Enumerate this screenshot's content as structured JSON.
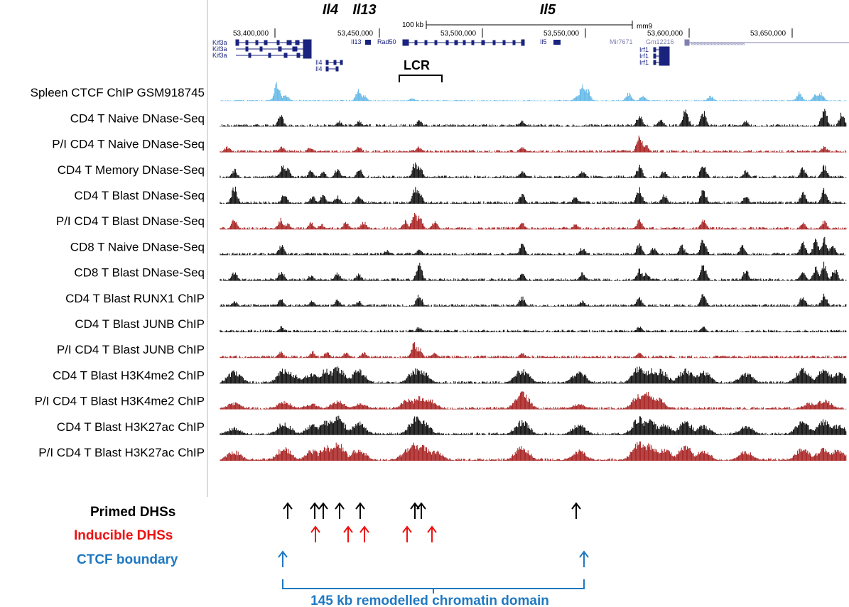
{
  "browser": {
    "gene_headers": [
      {
        "label": "Il4",
        "x": 465
      },
      {
        "label": "Il13",
        "x": 513
      },
      {
        "label": "Il5",
        "x": 771
      }
    ],
    "scale": {
      "label": "100 kb",
      "assembly": "mm9"
    },
    "coordinates": [
      "53,400,000",
      "53,450,000",
      "53,500,000",
      "53,550,000",
      "53,600,000",
      "53,650,000"
    ],
    "genes": {
      "kif3a": [
        "Kif3a",
        "Kif3a",
        "Kif3a"
      ],
      "il4": [
        "Il4",
        "Il4"
      ],
      "il13": "Il13",
      "rad50": "Rad50",
      "il5": "Il5",
      "mir7671": "Mir7671",
      "gm12216": "Gm12216",
      "irf1": [
        "Irf1",
        "Irf1",
        "Irf1"
      ]
    },
    "lcr_label": "LCR"
  },
  "colors": {
    "ctcf": "#5ab4e6",
    "resting": "#000000",
    "stimulated": "#a31515",
    "inducible": "#ee1111",
    "boundary": "#1f78c1"
  },
  "tracks": [
    {
      "label": "Spleen CTCF ChIP GSM918745",
      "kind": "ctcf",
      "peaks": [
        [
          390,
          0.95
        ],
        [
          402,
          0.35
        ],
        [
          505,
          0.6
        ],
        [
          512,
          0.3
        ],
        [
          580,
          0.15
        ],
        [
          820,
          0.95
        ],
        [
          826,
          0.7
        ],
        [
          812,
          0.3
        ],
        [
          885,
          0.4
        ],
        [
          905,
          0.3
        ],
        [
          1000,
          0.25
        ],
        [
          1125,
          0.45
        ],
        [
          1148,
          0.35
        ],
        [
          1155,
          0.45
        ]
      ]
    },
    {
      "label": "CD4 T  Naive DNase-Seq",
      "kind": "resting",
      "peaks": [
        [
          395,
          0.6
        ],
        [
          477,
          0.3
        ],
        [
          505,
          0.3
        ],
        [
          590,
          0.35
        ],
        [
          735,
          0.3
        ],
        [
          900,
          0.65
        ],
        [
          930,
          0.4
        ],
        [
          965,
          0.9
        ],
        [
          990,
          0.8
        ],
        [
          1050,
          0.3
        ],
        [
          1160,
          0.95
        ],
        [
          1185,
          0.7
        ]
      ]
    },
    {
      "label": "P/I CD4 T  Naive DNase-Seq",
      "kind": "stimulated",
      "peaks": [
        [
          320,
          0.3
        ],
        [
          397,
          0.3
        ],
        [
          437,
          0.3
        ],
        [
          505,
          0.3
        ],
        [
          590,
          0.3
        ],
        [
          735,
          0.3
        ],
        [
          900,
          0.9
        ],
        [
          910,
          0.35
        ],
        [
          1160,
          0.3
        ]
      ]
    },
    {
      "label": "CD4 T  Memory DNase-Seq",
      "kind": "resting",
      "peaks": [
        [
          330,
          0.45
        ],
        [
          398,
          0.65
        ],
        [
          405,
          0.5
        ],
        [
          438,
          0.4
        ],
        [
          455,
          0.3
        ],
        [
          475,
          0.5
        ],
        [
          506,
          0.45
        ],
        [
          585,
          0.85
        ],
        [
          590,
          0.7
        ],
        [
          735,
          0.4
        ],
        [
          820,
          0.4
        ],
        [
          900,
          0.65
        ],
        [
          935,
          0.4
        ],
        [
          990,
          0.8
        ],
        [
          1050,
          0.4
        ],
        [
          1130,
          0.55
        ],
        [
          1160,
          0.65
        ]
      ]
    },
    {
      "label": "CD4 T  Blast DNase-Seq",
      "kind": "resting",
      "peaks": [
        [
          330,
          0.95
        ],
        [
          400,
          0.55
        ],
        [
          440,
          0.4
        ],
        [
          455,
          0.5
        ],
        [
          475,
          0.4
        ],
        [
          506,
          0.45
        ],
        [
          585,
          0.85
        ],
        [
          590,
          0.7
        ],
        [
          735,
          0.5
        ],
        [
          810,
          0.35
        ],
        [
          900,
          0.85
        ],
        [
          935,
          0.5
        ],
        [
          990,
          0.75
        ],
        [
          1050,
          0.4
        ],
        [
          1130,
          0.6
        ],
        [
          1160,
          0.75
        ]
      ]
    },
    {
      "label": "P/I CD4 T  Blast DNase-Seq",
      "kind": "stimulated",
      "peaks": [
        [
          330,
          0.55
        ],
        [
          395,
          0.55
        ],
        [
          405,
          0.3
        ],
        [
          438,
          0.35
        ],
        [
          452,
          0.3
        ],
        [
          487,
          0.45
        ],
        [
          512,
          0.4
        ],
        [
          570,
          0.45
        ],
        [
          583,
          0.9
        ],
        [
          590,
          0.8
        ],
        [
          612,
          0.45
        ],
        [
          735,
          0.35
        ],
        [
          810,
          0.3
        ],
        [
          900,
          0.55
        ],
        [
          990,
          0.5
        ],
        [
          1130,
          0.4
        ],
        [
          1160,
          0.45
        ]
      ]
    },
    {
      "label": "CD8 T  Naive DNase-Seq",
      "kind": "resting",
      "peaks": [
        [
          396,
          0.55
        ],
        [
          545,
          0.25
        ],
        [
          590,
          0.3
        ],
        [
          735,
          0.55
        ],
        [
          820,
          0.4
        ],
        [
          900,
          0.6
        ],
        [
          920,
          0.4
        ],
        [
          960,
          0.5
        ],
        [
          990,
          0.9
        ],
        [
          1045,
          0.5
        ],
        [
          1130,
          0.65
        ],
        [
          1148,
          0.8
        ],
        [
          1160,
          0.9
        ],
        [
          1172,
          0.65
        ]
      ]
    },
    {
      "label": "CD8 T  Blast DNase-Seq",
      "kind": "resting",
      "peaks": [
        [
          330,
          0.45
        ],
        [
          396,
          0.55
        ],
        [
          438,
          0.3
        ],
        [
          475,
          0.45
        ],
        [
          505,
          0.35
        ],
        [
          590,
          0.9
        ],
        [
          735,
          0.4
        ],
        [
          820,
          0.45
        ],
        [
          900,
          0.6
        ],
        [
          910,
          0.45
        ],
        [
          990,
          0.85
        ],
        [
          1050,
          0.6
        ],
        [
          1130,
          0.55
        ],
        [
          1148,
          0.7
        ],
        [
          1160,
          0.9
        ],
        [
          1175,
          0.65
        ]
      ]
    },
    {
      "label": "CD4 T  Blast RUNX1 ChIP",
      "kind": "resting",
      "peaks": [
        [
          330,
          0.3
        ],
        [
          396,
          0.4
        ],
        [
          440,
          0.3
        ],
        [
          475,
          0.35
        ],
        [
          505,
          0.3
        ],
        [
          590,
          0.65
        ],
        [
          735,
          0.5
        ],
        [
          820,
          0.3
        ],
        [
          900,
          0.55
        ],
        [
          990,
          0.75
        ],
        [
          1130,
          0.55
        ],
        [
          1160,
          0.65
        ]
      ]
    },
    {
      "label": "CD4 T  Blast JUNB ChIP",
      "kind": "resting",
      "peaks": [
        [
          396,
          0.3
        ],
        [
          590,
          0.3
        ],
        [
          900,
          0.3
        ],
        [
          990,
          0.3
        ]
      ]
    },
    {
      "label": "P/I CD4 T  Blast JUNB ChIP",
      "kind": "stimulated",
      "peaks": [
        [
          395,
          0.35
        ],
        [
          440,
          0.35
        ],
        [
          460,
          0.3
        ],
        [
          487,
          0.3
        ],
        [
          512,
          0.3
        ],
        [
          583,
          0.75
        ],
        [
          590,
          0.55
        ],
        [
          612,
          0.3
        ],
        [
          735,
          0.3
        ],
        [
          900,
          0.3
        ]
      ]
    },
    {
      "label": "CD4 T  Blast H3K4me2 ChIP",
      "kind": "resting",
      "peaks": [
        [
          330,
          0.65
        ],
        [
          400,
          0.75
        ],
        [
          410,
          0.55
        ],
        [
          438,
          0.55
        ],
        [
          460,
          0.75
        ],
        [
          475,
          0.85
        ],
        [
          505,
          0.7
        ],
        [
          585,
          0.75
        ],
        [
          595,
          0.65
        ],
        [
          735,
          0.75
        ],
        [
          815,
          0.65
        ],
        [
          900,
          0.85
        ],
        [
          915,
          0.75
        ],
        [
          930,
          0.7
        ],
        [
          965,
          0.75
        ],
        [
          990,
          0.65
        ],
        [
          1050,
          0.55
        ],
        [
          1130,
          0.75
        ],
        [
          1160,
          0.75
        ],
        [
          1180,
          0.55
        ]
      ]
    },
    {
      "label": "P/I CD4 T  Blast H3K4me2 ChIP",
      "kind": "stimulated",
      "peaks": [
        [
          330,
          0.35
        ],
        [
          400,
          0.4
        ],
        [
          438,
          0.3
        ],
        [
          475,
          0.45
        ],
        [
          507,
          0.3
        ],
        [
          575,
          0.55
        ],
        [
          590,
          0.65
        ],
        [
          605,
          0.5
        ],
        [
          735,
          0.85
        ],
        [
          815,
          0.3
        ],
        [
          900,
          0.75
        ],
        [
          910,
          0.9
        ],
        [
          925,
          0.6
        ],
        [
          1140,
          0.35
        ],
        [
          1160,
          0.5
        ]
      ]
    },
    {
      "label": "CD4 T  Blast H3K27ac ChIP",
      "kind": "resting",
      "peaks": [
        [
          330,
          0.4
        ],
        [
          400,
          0.65
        ],
        [
          440,
          0.55
        ],
        [
          460,
          0.8
        ],
        [
          475,
          0.95
        ],
        [
          505,
          0.65
        ],
        [
          585,
          0.9
        ],
        [
          595,
          0.75
        ],
        [
          735,
          0.75
        ],
        [
          815,
          0.55
        ],
        [
          900,
          0.9
        ],
        [
          915,
          0.75
        ],
        [
          935,
          0.55
        ],
        [
          965,
          0.7
        ],
        [
          990,
          0.5
        ],
        [
          1050,
          0.5
        ],
        [
          1130,
          0.7
        ],
        [
          1160,
          0.75
        ],
        [
          1180,
          0.55
        ]
      ]
    },
    {
      "label": "P/I CD4 T  Blast H3K27ac ChIP",
      "kind": "stimulated",
      "peaks": [
        [
          330,
          0.5
        ],
        [
          400,
          0.7
        ],
        [
          440,
          0.55
        ],
        [
          460,
          0.8
        ],
        [
          475,
          0.95
        ],
        [
          505,
          0.65
        ],
        [
          575,
          0.6
        ],
        [
          585,
          0.9
        ],
        [
          595,
          0.75
        ],
        [
          612,
          0.55
        ],
        [
          735,
          0.75
        ],
        [
          815,
          0.55
        ],
        [
          900,
          0.95
        ],
        [
          915,
          0.85
        ],
        [
          935,
          0.65
        ],
        [
          965,
          0.8
        ],
        [
          990,
          0.55
        ],
        [
          1050,
          0.5
        ],
        [
          1130,
          0.65
        ],
        [
          1160,
          0.7
        ],
        [
          1180,
          0.6
        ]
      ]
    }
  ],
  "legend": {
    "primed_label": "Primed DHSs",
    "inducible_label": "Inducible DHSs",
    "ctcf_label": "CTCF boundary",
    "domain_label": "145 kb remodelled chromatin domain"
  },
  "arrows": {
    "primed": [
      405,
      443,
      455,
      478,
      507,
      584,
      593,
      811
    ],
    "inducible": [
      444,
      490,
      513,
      573,
      608
    ],
    "ctcf": [
      398,
      822
    ]
  }
}
